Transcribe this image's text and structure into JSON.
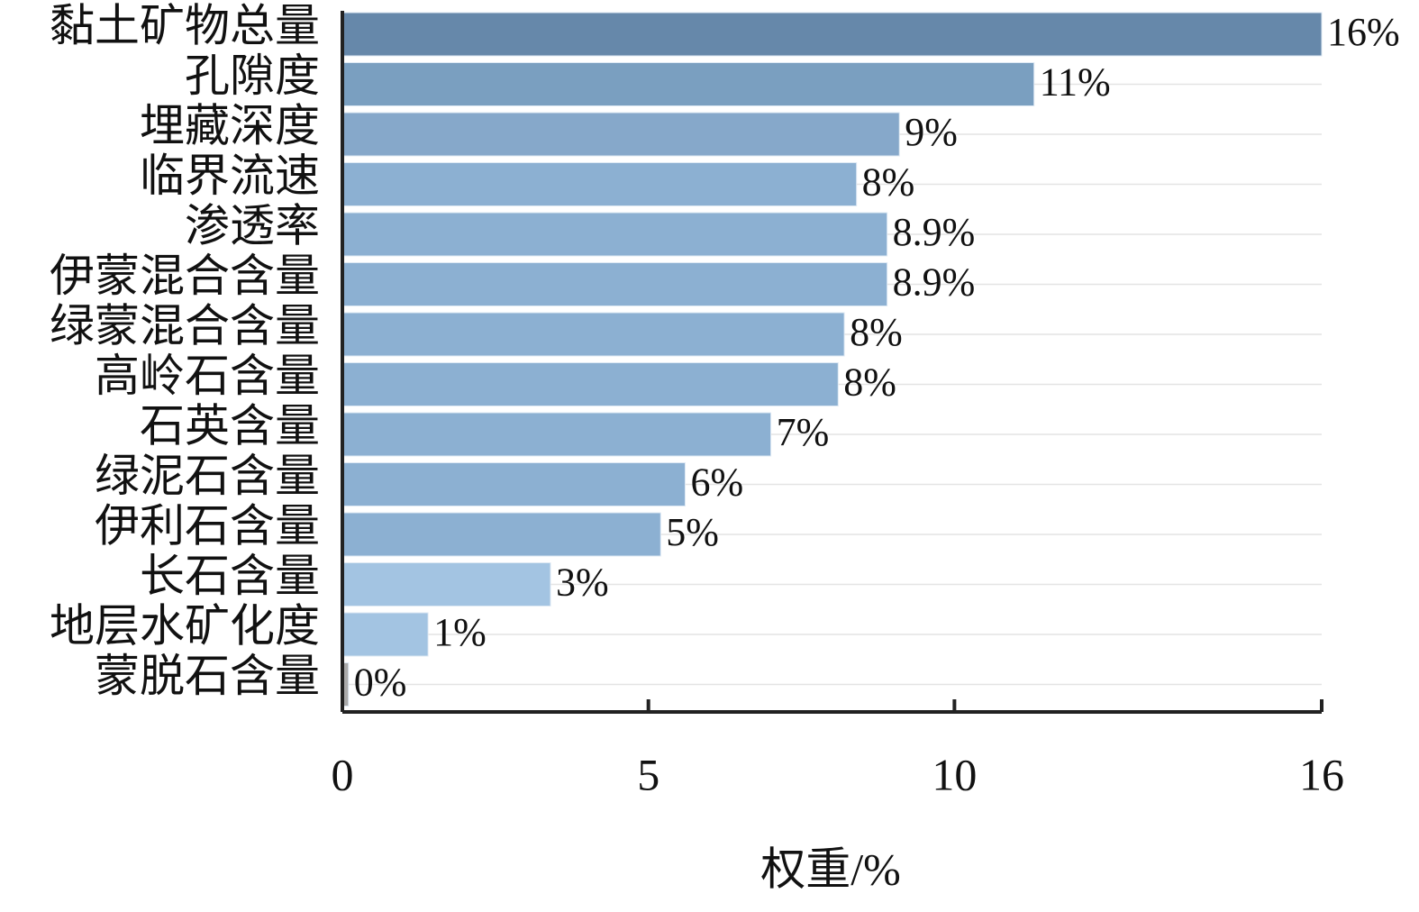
{
  "chart_data": {
    "type": "hbar",
    "categories": [
      "黏土矿物总量",
      "孔隙度",
      "埋藏深度",
      "临界流速",
      "渗透率",
      "伊蒙混合含量",
      "绿蒙混合含量",
      "高岭石含量",
      "石英含量",
      "绿泥石含量",
      "伊利石含量",
      "长石含量",
      "地层水矿化度",
      "蒙脱石含量"
    ],
    "values": [
      16,
      11.3,
      9.1,
      8.4,
      8.9,
      8.9,
      8.2,
      8.1,
      7.0,
      5.6,
      5.2,
      3.4,
      1.4,
      0.1
    ],
    "value_labels": [
      "16%",
      "11%",
      "9%",
      "8%",
      "8.9%",
      "8.9%",
      "8%",
      "8%",
      "7%",
      "6%",
      "5%",
      "3%",
      "1%",
      "0%"
    ],
    "colors": [
      "#6688aa",
      "#7a9fc0",
      "#86a8ca",
      "#8cb0d2",
      "#8cb0d2",
      "#8cb0d2",
      "#8cb0d2",
      "#8cb0d2",
      "#8cb0d2",
      "#8cb0d2",
      "#8cb0d2",
      "#a3c4e2",
      "#a3c4e2",
      "#aaaaaa"
    ],
    "xlabel": "权重/%",
    "xlim": [
      0,
      16
    ],
    "xticks": [
      0,
      5,
      10,
      16
    ],
    "grid": true
  }
}
